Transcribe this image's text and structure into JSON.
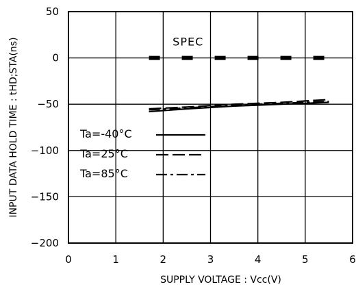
{
  "chart_data": {
    "type": "line",
    "xlabel": "SUPPLY VOLTAGE : Vcc(V)",
    "ylabel": "INPUT DATA HOLD TIME : tHD;STA(ns)",
    "xlim": [
      0,
      6
    ],
    "ylim": [
      -200,
      50
    ],
    "xticks": [
      0,
      1,
      2,
      3,
      4,
      5,
      6
    ],
    "yticks": [
      50,
      0,
      -50,
      -100,
      -150,
      -200
    ],
    "grid": true,
    "legend_position": "left",
    "annotations": [
      {
        "text": "SPEC",
        "x": 2.2,
        "y": 15
      }
    ],
    "series": [
      {
        "name": "Ta=-40°C",
        "style": "solid",
        "x": [
          1.7,
          2.5,
          3.5,
          4.5,
          5.5
        ],
        "y": [
          -58,
          -55,
          -52,
          -50,
          -48
        ]
      },
      {
        "name": "Ta=25°C",
        "style": "dashed",
        "x": [
          1.7,
          2.5,
          3.5,
          4.5,
          5.5
        ],
        "y": [
          -55,
          -53,
          -50,
          -48,
          -45
        ]
      },
      {
        "name": "Ta=85°C",
        "style": "dashdot",
        "x": [
          1.7,
          2.5,
          3.5,
          4.5,
          5.5
        ],
        "y": [
          -56,
          -54,
          -51,
          -49,
          -47
        ]
      },
      {
        "name": "SPEC",
        "style": "dashed-thick",
        "x": [
          1.7,
          5.5
        ],
        "y": [
          0,
          0
        ]
      }
    ]
  }
}
